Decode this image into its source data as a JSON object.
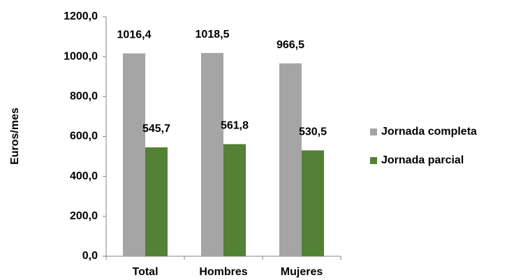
{
  "chart_data": {
    "type": "bar",
    "y_label": "Euros/mes",
    "categories": [
      "Total",
      "Hombres",
      "Mujeres"
    ],
    "series": [
      {
        "name": "Jornada completa",
        "color": "#a5a5a5",
        "values": [
          1016.4,
          1018.5,
          966.5
        ],
        "value_labels": [
          "1016,4",
          "1018,5",
          "966,5"
        ]
      },
      {
        "name": "Jornada parcial",
        "color": "#538135",
        "values": [
          545.7,
          561.8,
          530.5
        ],
        "value_labels": [
          "545,7",
          "561,8",
          "530,5"
        ]
      }
    ],
    "ylim": [
      0,
      1200
    ],
    "yticks": [
      {
        "value": 0,
        "label": "0,0"
      },
      {
        "value": 200,
        "label": "200,0"
      },
      {
        "value": 400,
        "label": "400,0"
      },
      {
        "value": 600,
        "label": "600,0"
      },
      {
        "value": 800,
        "label": "800,0"
      },
      {
        "value": 1000,
        "label": "1000,0"
      },
      {
        "value": 1200,
        "label": "1200,0"
      }
    ],
    "grid": false,
    "legend": "right"
  }
}
